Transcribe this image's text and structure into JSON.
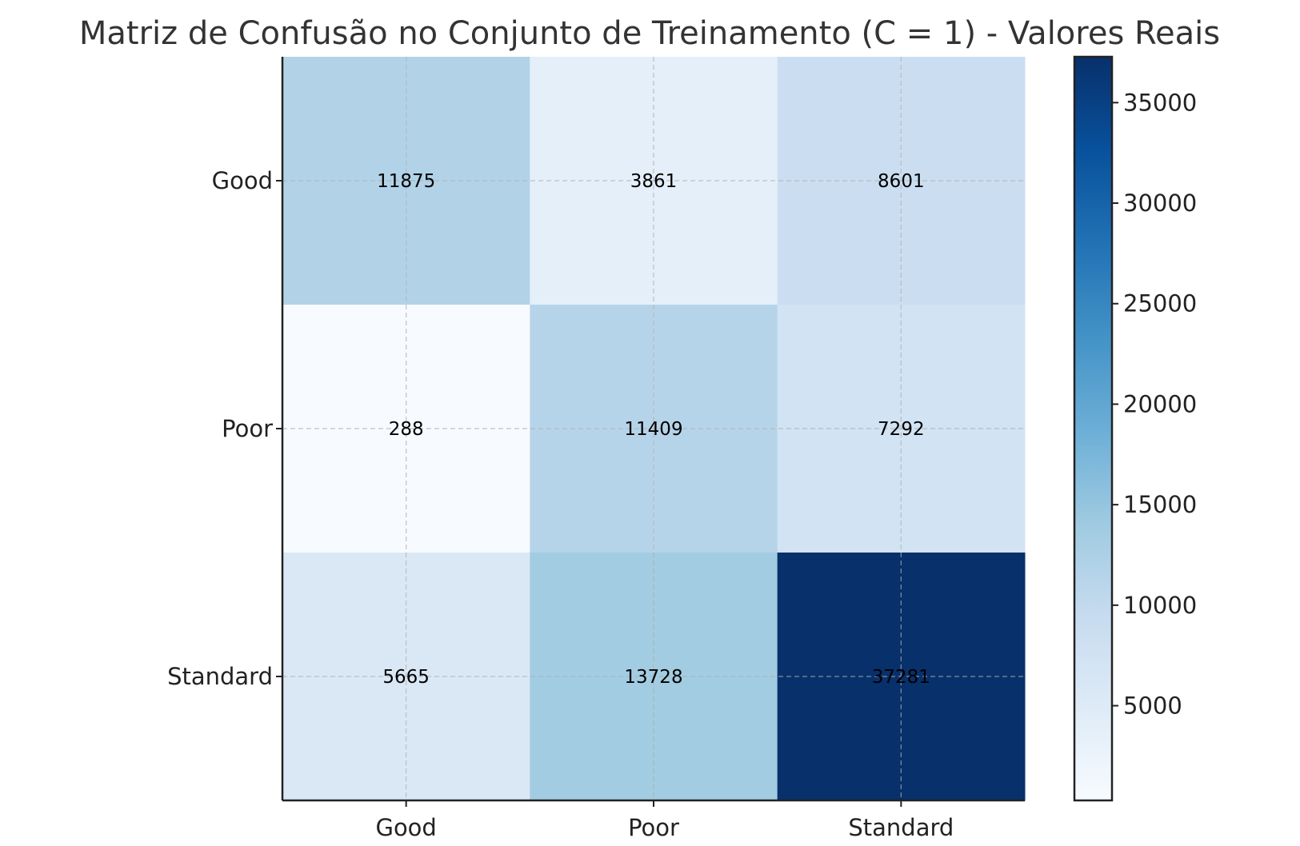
{
  "chart_data": {
    "type": "heatmap",
    "title": "Matriz de Confusão no Conjunto de Treinamento (C = 1) - Valores Reais",
    "xlabel": "",
    "ylabel": "",
    "x_categories": [
      "Good",
      "Poor",
      "Standard"
    ],
    "y_categories": [
      "Good",
      "Poor",
      "Standard"
    ],
    "values": [
      [
        11875,
        3861,
        8601
      ],
      [
        288,
        11409,
        7292
      ],
      [
        5665,
        13728,
        37281
      ]
    ],
    "colormap": "Blues",
    "colorbar": {
      "min": 288,
      "max": 37281,
      "ticks": [
        5000,
        10000,
        15000,
        20000,
        25000,
        30000,
        35000
      ]
    },
    "grid": true
  }
}
